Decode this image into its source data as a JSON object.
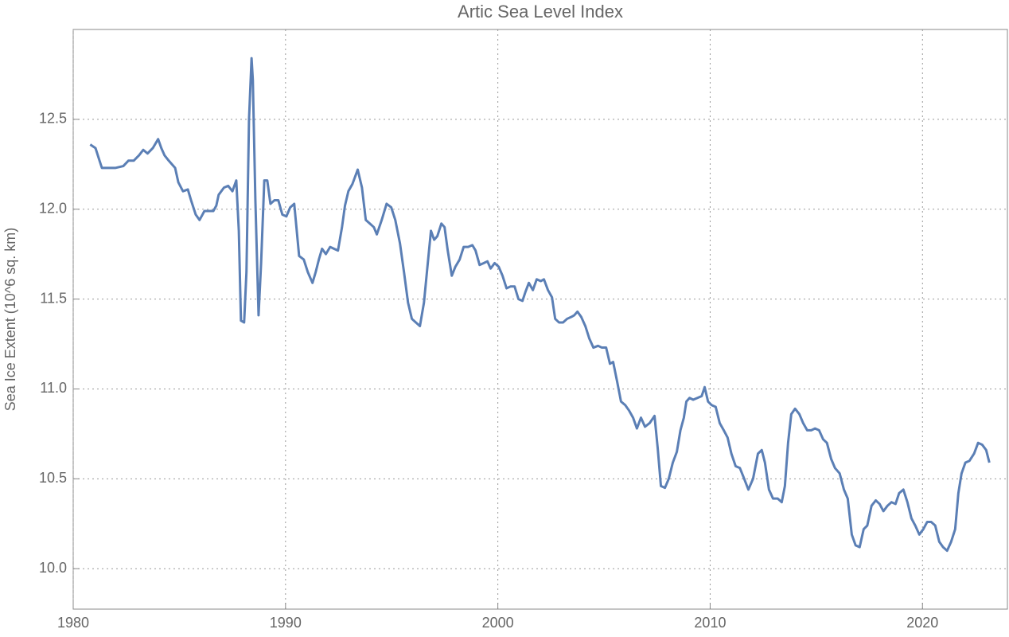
{
  "chart_data": {
    "type": "line",
    "title": "Artic Sea Level Index",
    "y_label": "Sea Ice Extent (10^6 sq. km)",
    "x": [
      1980.8,
      1981.05,
      1981.24,
      1981.35,
      1981.6,
      1982.0,
      1982.36,
      1982.6,
      1982.85,
      1983.1,
      1983.3,
      1983.5,
      1983.75,
      1984.0,
      1984.15,
      1984.3,
      1984.5,
      1984.8,
      1984.95,
      1985.17,
      1985.4,
      1985.55,
      1985.77,
      1985.95,
      1986.18,
      1986.37,
      1986.6,
      1986.74,
      1986.85,
      1987.1,
      1987.3,
      1987.5,
      1987.68,
      1987.8,
      1987.9,
      1988.05,
      1988.16,
      1988.28,
      1988.4,
      1988.46,
      1988.58,
      1988.73,
      1988.85,
      1989.0,
      1989.14,
      1989.29,
      1989.48,
      1989.66,
      1989.85,
      1990.04,
      1990.22,
      1990.41,
      1990.64,
      1990.86,
      1991.05,
      1991.27,
      1991.42,
      1991.57,
      1991.72,
      1991.9,
      1992.1,
      1992.28,
      1992.47,
      1992.66,
      1992.8,
      1992.96,
      1993.15,
      1993.4,
      1993.6,
      1993.78,
      1993.97,
      1994.16,
      1994.3,
      1994.53,
      1994.76,
      1994.98,
      1995.17,
      1995.39,
      1995.58,
      1995.77,
      1995.95,
      1996.14,
      1996.33,
      1996.52,
      1996.7,
      1996.85,
      1997.0,
      1997.15,
      1997.34,
      1997.49,
      1997.64,
      1997.83,
      1998.0,
      1998.2,
      1998.39,
      1998.6,
      1998.8,
      1998.95,
      1999.14,
      1999.33,
      1999.51,
      1999.66,
      1999.85,
      2000.04,
      2000.22,
      2000.41,
      2000.6,
      2000.79,
      2000.97,
      2001.16,
      2001.3,
      2001.46,
      2001.65,
      2001.83,
      2002.02,
      2002.17,
      2002.36,
      2002.55,
      2002.7,
      2002.88,
      2003.07,
      2003.26,
      2003.45,
      2003.6,
      2003.75,
      2003.93,
      2004.12,
      2004.31,
      2004.5,
      2004.72,
      2004.9,
      2005.1,
      2005.28,
      2005.43,
      2005.62,
      2005.8,
      2006.0,
      2006.18,
      2006.37,
      2006.55,
      2006.74,
      2006.93,
      2007.15,
      2007.38,
      2007.53,
      2007.68,
      2007.87,
      2008.05,
      2008.24,
      2008.43,
      2008.6,
      2008.76,
      2008.88,
      2009.03,
      2009.2,
      2009.4,
      2009.6,
      2009.74,
      2009.9,
      2010.07,
      2010.26,
      2010.45,
      2010.64,
      2010.82,
      2011.0,
      2011.2,
      2011.4,
      2011.57,
      2011.8,
      2012.02,
      2012.25,
      2012.43,
      2012.58,
      2012.77,
      2012.96,
      2013.18,
      2013.37,
      2013.52,
      2013.67,
      2013.82,
      2014.0,
      2014.2,
      2014.38,
      2014.57,
      2014.76,
      2014.94,
      2015.13,
      2015.32,
      2015.5,
      2015.7,
      2015.88,
      2016.1,
      2016.3,
      2016.48,
      2016.67,
      2016.85,
      2017.04,
      2017.23,
      2017.4,
      2017.6,
      2017.8,
      2017.98,
      2018.16,
      2018.35,
      2018.54,
      2018.73,
      2018.9,
      2019.1,
      2019.29,
      2019.48,
      2019.66,
      2019.85,
      2020.04,
      2020.22,
      2020.41,
      2020.6,
      2020.79,
      2020.97,
      2021.16,
      2021.35,
      2021.54,
      2021.69,
      2021.84,
      2022.02,
      2022.21,
      2022.43,
      2022.62,
      2022.81,
      2023.0,
      2023.15
    ],
    "series": [
      {
        "name": "Sea Ice Extent",
        "color": "#5b7fb5",
        "values": [
          12.36,
          12.34,
          12.27,
          12.23,
          12.23,
          12.23,
          12.24,
          12.27,
          12.27,
          12.3,
          12.33,
          12.31,
          12.34,
          12.39,
          12.34,
          12.3,
          12.27,
          12.23,
          12.15,
          12.1,
          12.11,
          12.05,
          11.97,
          11.94,
          11.99,
          11.99,
          11.99,
          12.02,
          12.08,
          12.12,
          12.13,
          12.1,
          12.16,
          11.88,
          11.38,
          11.37,
          11.65,
          12.5,
          12.84,
          12.72,
          12.05,
          11.41,
          11.7,
          12.16,
          12.16,
          12.03,
          12.05,
          12.05,
          11.97,
          11.96,
          12.01,
          12.03,
          11.74,
          11.72,
          11.65,
          11.59,
          11.65,
          11.72,
          11.78,
          11.75,
          11.79,
          11.78,
          11.77,
          11.9,
          12.02,
          12.1,
          12.14,
          12.22,
          12.12,
          11.94,
          11.92,
          11.9,
          11.86,
          11.94,
          12.03,
          12.01,
          11.94,
          11.81,
          11.65,
          11.48,
          11.39,
          11.37,
          11.35,
          11.48,
          11.7,
          11.88,
          11.83,
          11.85,
          11.92,
          11.9,
          11.77,
          11.63,
          11.68,
          11.72,
          11.79,
          11.79,
          11.8,
          11.77,
          11.69,
          11.7,
          11.71,
          11.67,
          11.7,
          11.68,
          11.63,
          11.56,
          11.57,
          11.57,
          11.5,
          11.49,
          11.54,
          11.59,
          11.55,
          11.61,
          11.6,
          11.61,
          11.55,
          11.51,
          11.39,
          11.37,
          11.37,
          11.39,
          11.4,
          11.41,
          11.43,
          11.4,
          11.35,
          11.28,
          11.23,
          11.24,
          11.23,
          11.23,
          11.14,
          11.15,
          11.04,
          10.93,
          10.91,
          10.88,
          10.84,
          10.78,
          10.84,
          10.79,
          10.81,
          10.85,
          10.67,
          10.46,
          10.45,
          10.5,
          10.59,
          10.65,
          10.77,
          10.84,
          10.93,
          10.95,
          10.94,
          10.95,
          10.96,
          11.01,
          10.93,
          10.91,
          10.9,
          10.81,
          10.77,
          10.73,
          10.64,
          10.57,
          10.56,
          10.51,
          10.44,
          10.5,
          10.64,
          10.66,
          10.59,
          10.44,
          10.39,
          10.39,
          10.37,
          10.46,
          10.7,
          10.86,
          10.89,
          10.86,
          10.81,
          10.77,
          10.77,
          10.78,
          10.77,
          10.72,
          10.7,
          10.61,
          10.56,
          10.53,
          10.44,
          10.39,
          10.19,
          10.13,
          10.12,
          10.22,
          10.24,
          10.35,
          10.38,
          10.36,
          10.32,
          10.35,
          10.37,
          10.36,
          10.42,
          10.44,
          10.37,
          10.28,
          10.24,
          10.19,
          10.22,
          10.26,
          10.26,
          10.24,
          10.15,
          10.12,
          10.1,
          10.15,
          10.22,
          10.42,
          10.53,
          10.59,
          10.6,
          10.64,
          10.7,
          10.69,
          10.66,
          10.59
        ]
      }
    ],
    "xlim": [
      1980,
      2024
    ],
    "xticks": [
      1980,
      1990,
      2000,
      2010,
      2020
    ],
    "ylim": [
      9.775,
      13.0
    ],
    "yticks": [
      {
        "value": 10,
        "label": "10.0"
      },
      10.5,
      {
        "value": 11,
        "label": "11.0"
      },
      11.5,
      {
        "value": 12,
        "label": "12.0"
      },
      12.5
    ],
    "grid": true
  }
}
